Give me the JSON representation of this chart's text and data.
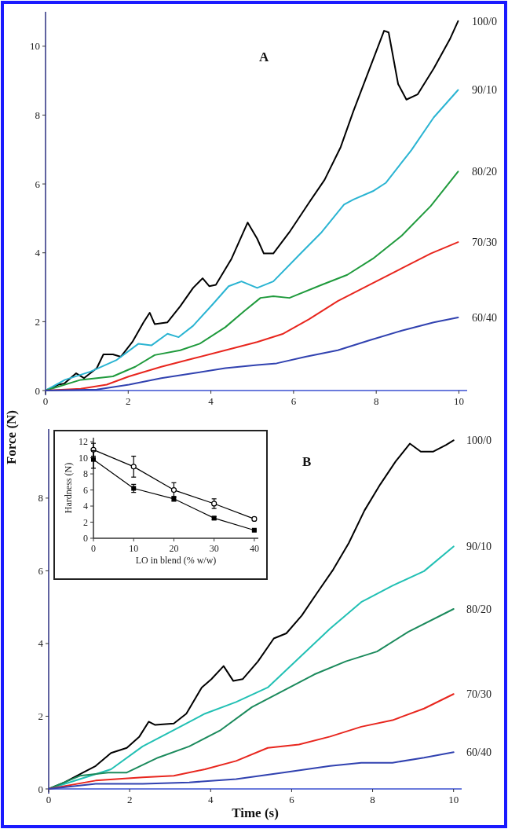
{
  "chart_data": [
    {
      "type": "line",
      "title": "A",
      "xlim": [
        0,
        10.2
      ],
      "xticks": [
        0,
        2,
        4,
        6,
        8,
        10
      ],
      "ylim": [
        0,
        11
      ],
      "yticks": [
        0,
        2,
        4,
        6,
        8,
        10
      ],
      "ylabel": "Force (N)",
      "series": [
        {
          "name": "100/0",
          "color": "#000000",
          "x": [
            0,
            0.31,
            0.45,
            0.74,
            0.93,
            1.24,
            1.4,
            1.63,
            1.82,
            2.1,
            2.37,
            2.52,
            2.64,
            2.95,
            3.26,
            3.57,
            3.8,
            3.96,
            4.12,
            4.5,
            4.89,
            5.12,
            5.28,
            5.51,
            5.9,
            6.37,
            6.75,
            7.14,
            7.45,
            7.84,
            8.19,
            8.3,
            8.53,
            8.73,
            9.0,
            9.39,
            9.78,
            9.98
          ],
          "values": [
            0,
            0.17,
            0.2,
            0.5,
            0.36,
            0.65,
            1.05,
            1.05,
            0.98,
            1.41,
            1.98,
            2.26,
            1.93,
            1.98,
            2.45,
            2.98,
            3.26,
            3.03,
            3.07,
            3.83,
            4.88,
            4.41,
            3.98,
            3.98,
            4.6,
            5.45,
            6.12,
            7.07,
            8.12,
            9.35,
            10.45,
            10.4,
            8.9,
            8.45,
            8.6,
            9.35,
            10.2,
            10.73
          ]
        },
        {
          "name": "90/10",
          "color": "#2ab4d2",
          "x": [
            0,
            0.47,
            1.09,
            1.71,
            2.25,
            2.56,
            2.95,
            3.22,
            3.57,
            4.04,
            4.43,
            4.74,
            5.12,
            5.51,
            6.13,
            6.68,
            7.22,
            7.45,
            7.92,
            8.23,
            8.85,
            9.39,
            9.98
          ],
          "values": [
            0,
            0.31,
            0.55,
            0.88,
            1.36,
            1.31,
            1.65,
            1.55,
            1.88,
            2.5,
            3.03,
            3.17,
            2.98,
            3.17,
            3.93,
            4.6,
            5.4,
            5.55,
            5.79,
            6.03,
            6.98,
            7.93,
            8.73
          ]
        },
        {
          "name": "80/20",
          "color": "#1f9a3c",
          "x": [
            0,
            0.85,
            1.63,
            2.17,
            2.64,
            3.26,
            3.73,
            4.35,
            4.81,
            5.2,
            5.51,
            5.9,
            6.68,
            7.3,
            7.92,
            8.62,
            9.32,
            9.98
          ],
          "values": [
            0,
            0.31,
            0.41,
            0.69,
            1.03,
            1.17,
            1.36,
            1.84,
            2.31,
            2.69,
            2.74,
            2.69,
            3.07,
            3.36,
            3.83,
            4.5,
            5.36,
            6.36
          ]
        },
        {
          "name": "70/30",
          "color": "#e8261e",
          "x": [
            0,
            0.85,
            1.48,
            2.02,
            2.8,
            3.57,
            4.35,
            5.12,
            5.75,
            6.37,
            7.07,
            7.84,
            8.62,
            9.32,
            9.98
          ],
          "values": [
            0,
            0.05,
            0.17,
            0.41,
            0.69,
            0.93,
            1.17,
            1.41,
            1.65,
            2.07,
            2.6,
            3.07,
            3.55,
            3.98,
            4.31
          ]
        },
        {
          "name": "60/40",
          "color": "#3142b0",
          "x": [
            0,
            1.24,
            2.02,
            2.8,
            3.57,
            4.35,
            5.12,
            5.59,
            6.29,
            7.07,
            7.84,
            8.62,
            9.39,
            9.98
          ],
          "values": [
            0,
            0.03,
            0.17,
            0.36,
            0.5,
            0.65,
            0.74,
            0.79,
            0.98,
            1.17,
            1.46,
            1.74,
            1.98,
            2.12
          ]
        }
      ]
    },
    {
      "type": "line",
      "title": "B",
      "xlim": [
        0,
        10.2
      ],
      "xticks": [
        0,
        2,
        4,
        6,
        8,
        10
      ],
      "ylim": [
        0,
        9.9
      ],
      "yticks": [
        0,
        2,
        4,
        6,
        8
      ],
      "xlabel": "Time (s)",
      "series": [
        {
          "name": "100/0",
          "color": "#000000",
          "x": [
            0,
            0.39,
            0.85,
            1.16,
            1.54,
            1.93,
            2.24,
            2.47,
            2.63,
            3.09,
            3.4,
            3.78,
            4.02,
            4.32,
            4.56,
            4.79,
            5.17,
            5.56,
            5.87,
            6.25,
            6.64,
            7.03,
            7.41,
            7.8,
            8.19,
            8.57,
            8.92,
            9.19,
            9.5,
            9.81,
            10
          ],
          "values": [
            0,
            0.18,
            0.45,
            0.63,
            0.99,
            1.13,
            1.44,
            1.85,
            1.76,
            1.8,
            2.07,
            2.79,
            3.02,
            3.38,
            2.97,
            3.02,
            3.51,
            4.14,
            4.28,
            4.77,
            5.41,
            6.04,
            6.76,
            7.66,
            8.38,
            9.01,
            9.5,
            9.28,
            9.28,
            9.46,
            9.59
          ]
        },
        {
          "name": "90/10",
          "color": "#22c0b4",
          "x": [
            0,
            0.77,
            1.54,
            2.32,
            3.09,
            3.86,
            4.63,
            5.41,
            6.18,
            6.95,
            7.72,
            8.49,
            9.27,
            10
          ],
          "values": [
            0,
            0.27,
            0.54,
            1.17,
            1.62,
            2.07,
            2.39,
            2.79,
            3.6,
            4.41,
            5.14,
            5.59,
            5.99,
            6.67
          ]
        },
        {
          "name": "80/20",
          "color": "#1b8a5c",
          "x": [
            0,
            0.77,
            1.47,
            1.93,
            2.7,
            3.47,
            4.25,
            5.02,
            5.79,
            6.56,
            7.34,
            8.11,
            8.88,
            10
          ],
          "values": [
            0,
            0.36,
            0.45,
            0.45,
            0.86,
            1.17,
            1.62,
            2.25,
            2.7,
            3.15,
            3.51,
            3.78,
            4.32,
            4.95
          ]
        },
        {
          "name": "70/30",
          "color": "#e8261e",
          "x": [
            0,
            1.16,
            2.32,
            3.09,
            3.86,
            4.63,
            5.41,
            6.18,
            6.95,
            7.72,
            8.49,
            9.27,
            10
          ],
          "values": [
            0,
            0.23,
            0.32,
            0.36,
            0.54,
            0.77,
            1.13,
            1.22,
            1.44,
            1.71,
            1.89,
            2.21,
            2.61
          ]
        },
        {
          "name": "60/40",
          "color": "#3142b0",
          "x": [
            0,
            1.16,
            2.32,
            3.47,
            4.63,
            5.79,
            6.95,
            7.72,
            8.49,
            9.27,
            10
          ],
          "values": [
            0,
            0.14,
            0.14,
            0.18,
            0.27,
            0.45,
            0.63,
            0.72,
            0.72,
            0.86,
            1.01
          ]
        }
      ]
    },
    {
      "type": "line",
      "xlim": [
        0,
        41
      ],
      "xticks": [
        0,
        10,
        20,
        30,
        40
      ],
      "ylim": [
        0,
        12.5
      ],
      "yticks": [
        0,
        2,
        4,
        6,
        8,
        10,
        12
      ],
      "xlabel": "LO in blend (% w/w)",
      "ylabel": "Hardness (N)",
      "series": [
        {
          "color": "#000000",
          "marker": "circle",
          "x": [
            0,
            10,
            20,
            30,
            40
          ],
          "values": [
            11,
            8.9,
            6,
            4.3,
            2.4
          ],
          "errors": [
            0.8,
            1.3,
            0.9,
            0.6,
            0.2
          ]
        },
        {
          "color": "#000000",
          "marker": "square",
          "x": [
            0,
            10,
            20,
            30,
            40
          ],
          "values": [
            9.8,
            6.2,
            4.9,
            2.5,
            1.0
          ],
          "errors": [
            1.1,
            0.5,
            0.3,
            0.2,
            0.1
          ]
        }
      ]
    }
  ]
}
